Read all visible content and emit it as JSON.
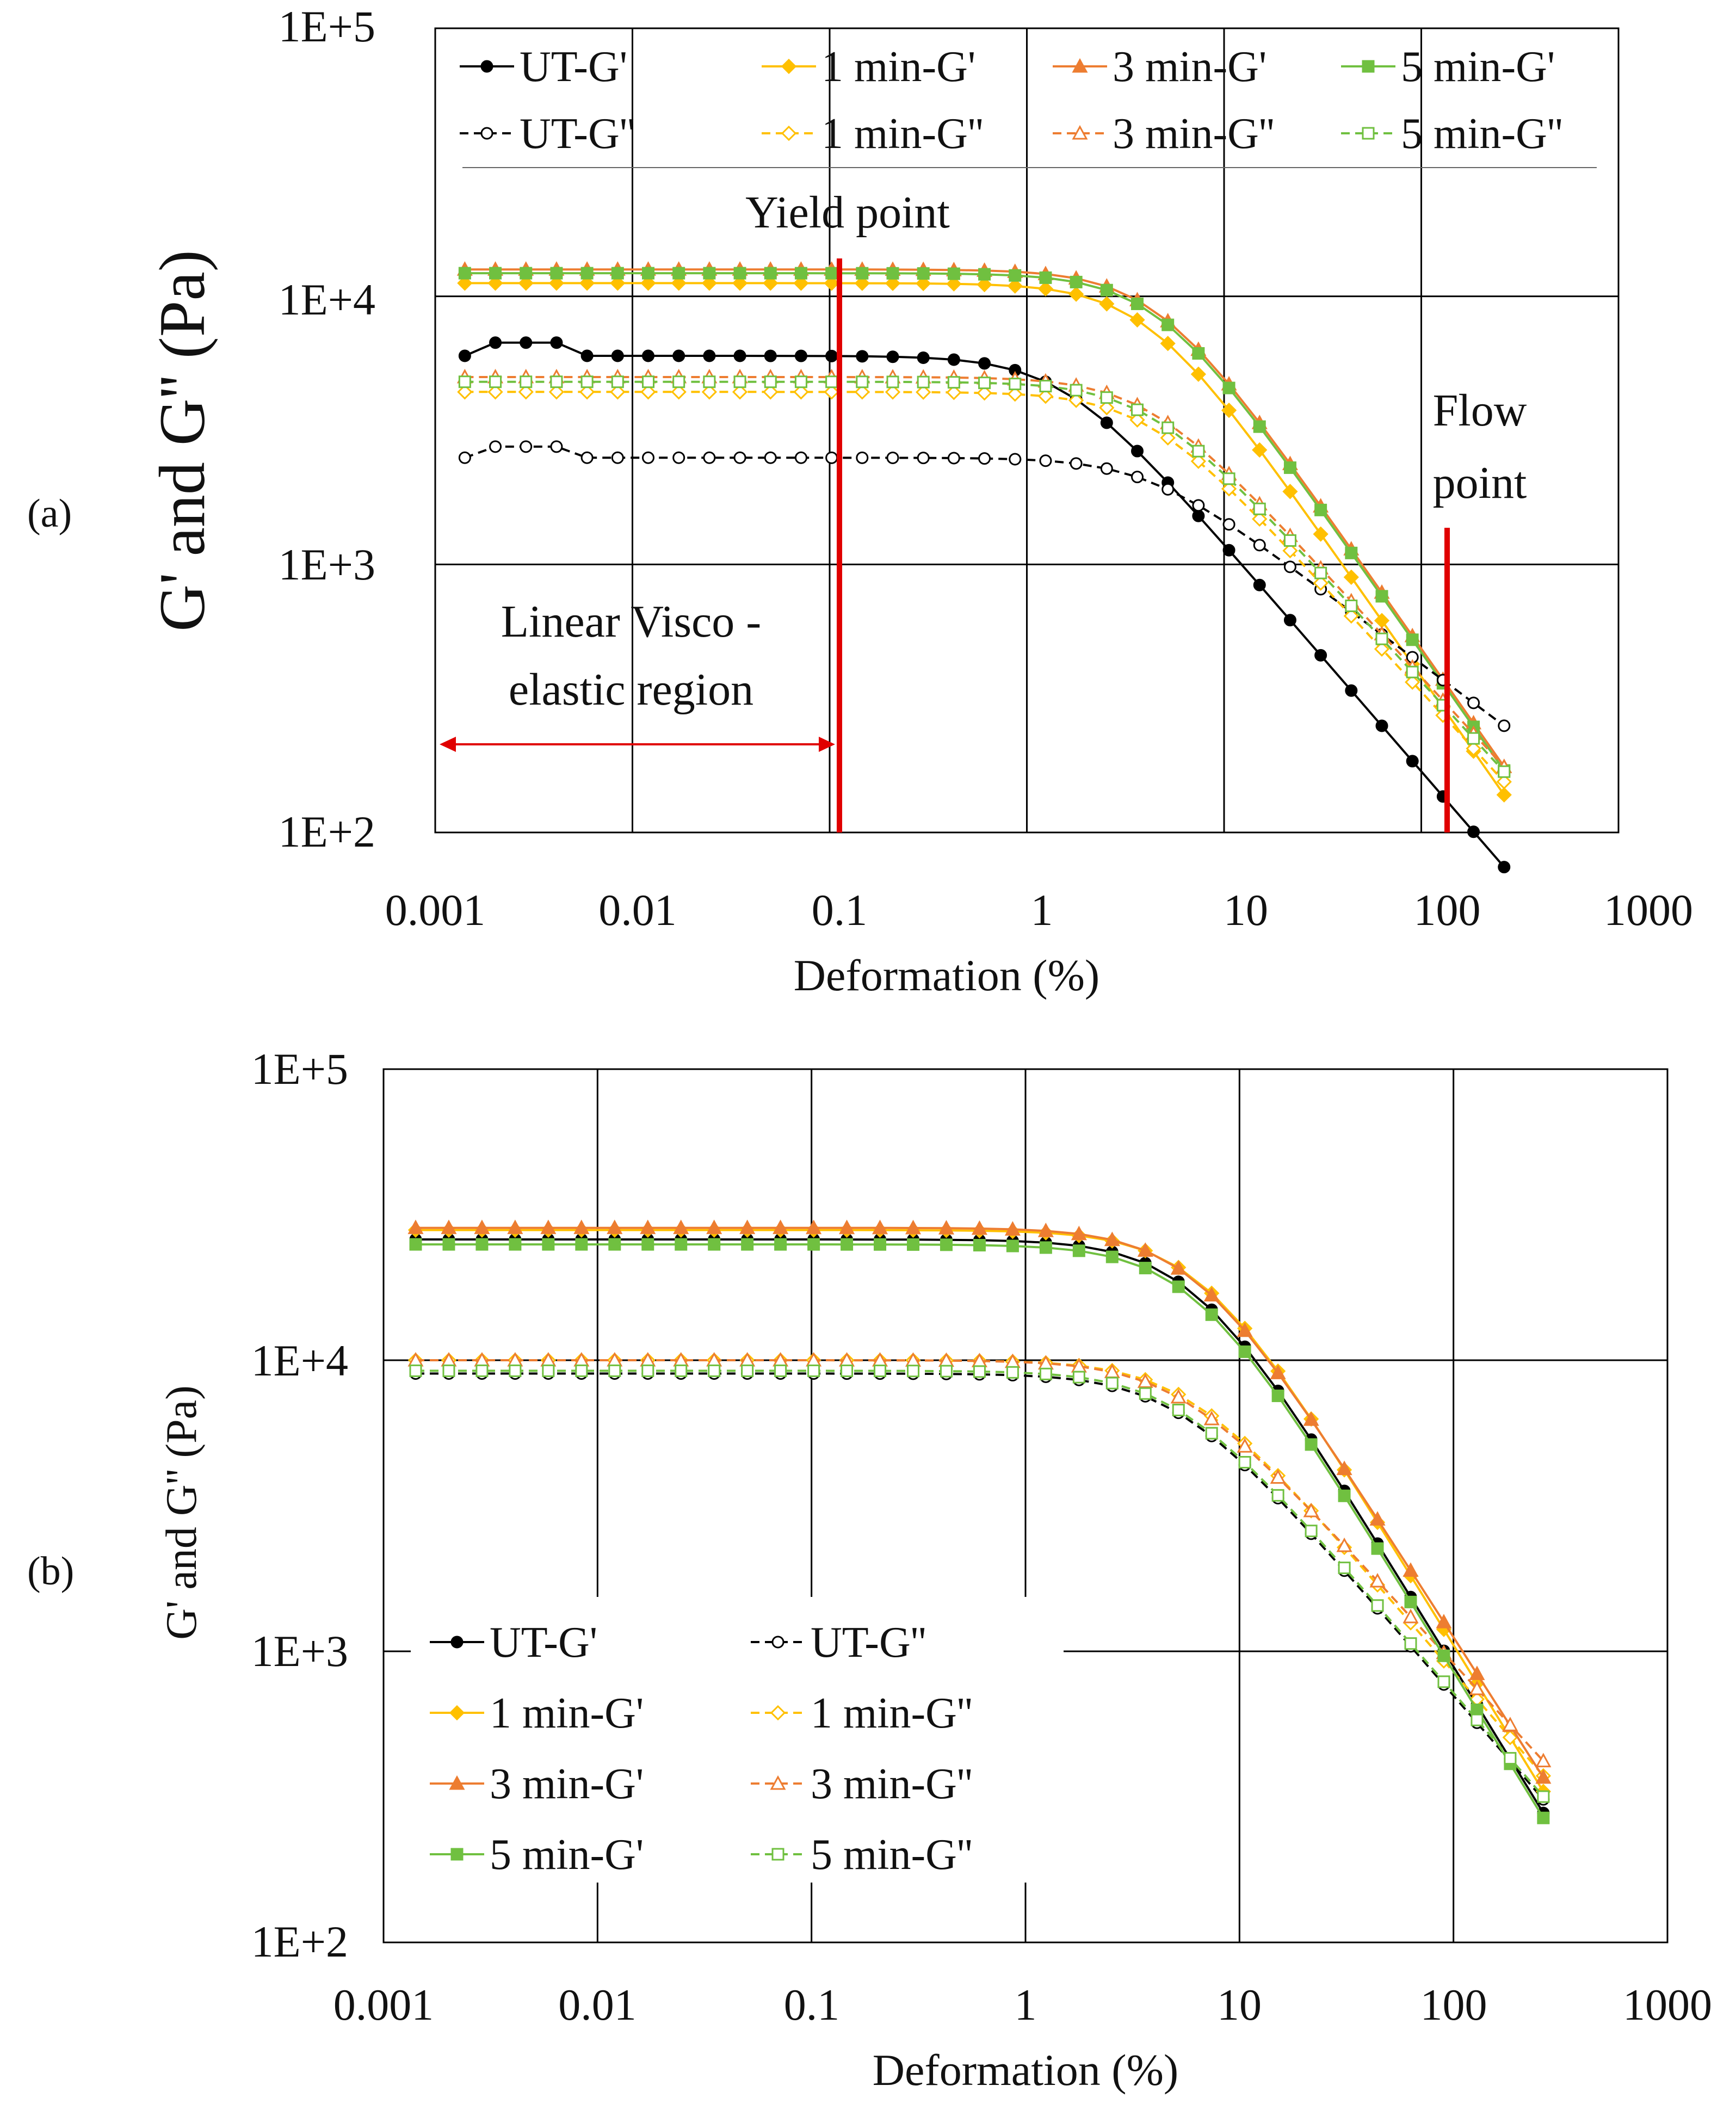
{
  "figure": {
    "panels": [
      {
        "panel_label": "(a)",
        "label_letter": "a",
        "ylabel": "G' and G'' (Pa)",
        "xlabel": "Deformation (%)",
        "annotations": {
          "yield_label": "Yield point",
          "flow_label_line1": "Flow",
          "flow_label_line2": "point",
          "lve_label_line1": "Linear Visco -",
          "lve_label_line2": "elastic region"
        }
      },
      {
        "panel_label": "(b)",
        "label_letter": "b",
        "ylabel": "G' and G'' (Pa)",
        "xlabel": "Deformation (%)"
      }
    ]
  },
  "colors": {
    "UT": "#000000",
    "1min": "#FFC000",
    "3min": "#ED7D31",
    "5min": "#70C040",
    "annotation_red": "#E00000",
    "grid": "#000000"
  },
  "chart_data": [
    {
      "type": "line",
      "title": "(a)",
      "xlabel": "Deformation (%)",
      "ylabel": "G' and G'' (Pa)",
      "xscale": "log",
      "yscale": "log",
      "xlim": [
        0.001,
        1000
      ],
      "ylim": [
        100,
        100000
      ],
      "x_ticks": [
        "0.001",
        "0.01",
        "0.1",
        "1",
        "10",
        "100",
        "1000"
      ],
      "y_ticks": [
        "1E+2",
        "1E+3",
        "1E+4",
        "1E+5"
      ],
      "legend_position": "top",
      "annotations": [
        {
          "text": "Yield point",
          "x": 0.1
        },
        {
          "text": "Flow point",
          "x": 100
        },
        {
          "text": "Linear Visco - elastic region",
          "x_range": [
            0.001,
            0.1
          ]
        }
      ],
      "series": [
        {
          "name": "UT-G'",
          "key": "UT",
          "style": "solid",
          "marker": "circle-filled",
          "amp": 6000,
          "gamma0": 1.5,
          "n": 0.85,
          "bump": 1.12
        },
        {
          "name": "1 min-G'",
          "key": "1min",
          "style": "solid",
          "marker": "diamond-filled",
          "amp": 11200,
          "gamma0": 4.0,
          "n": 1.05
        },
        {
          "name": "3 min-G'",
          "key": "3min",
          "style": "solid",
          "marker": "triangle-filled",
          "amp": 12600,
          "gamma0": 4.5,
          "n": 1.05
        },
        {
          "name": "5 min-G'",
          "key": "5min",
          "style": "solid",
          "marker": "square-filled",
          "amp": 12200,
          "gamma0": 4.5,
          "n": 1.05
        },
        {
          "name": "UT-G''",
          "key": "UT",
          "style": "dashed",
          "marker": "circle-open",
          "amp": 2500,
          "gamma0": 4.0,
          "n": 0.55,
          "bump": 1.1
        },
        {
          "name": "1 min-G''",
          "key": "1min",
          "style": "dashed",
          "marker": "diamond-open",
          "amp": 4400,
          "gamma0": 4.0,
          "n": 0.8
        },
        {
          "name": "3 min-G''",
          "key": "3min",
          "style": "dashed",
          "marker": "triangle-open",
          "amp": 5000,
          "gamma0": 4.0,
          "n": 0.8
        },
        {
          "name": "5 min-G''",
          "key": "5min",
          "style": "dashed",
          "marker": "square-open",
          "amp": 4800,
          "gamma0": 4.0,
          "n": 0.8
        }
      ]
    },
    {
      "type": "line",
      "title": "(b)",
      "xlabel": "Deformation (%)",
      "ylabel": "G' and G'' (Pa)",
      "xscale": "log",
      "yscale": "log",
      "xlim": [
        0.001,
        1000
      ],
      "ylim": [
        100,
        100000
      ],
      "x_ticks": [
        "0.001",
        "0.01",
        "0.1",
        "1",
        "10",
        "100",
        "1000"
      ],
      "y_ticks": [
        "1E+2",
        "1E+3",
        "1E+4",
        "1E+5"
      ],
      "legend_position": "bottom-left",
      "series": [
        {
          "name": "UT-G'",
          "key": "UT",
          "style": "solid",
          "marker": "circle-filled",
          "amp": 26000,
          "gamma0": 6.0,
          "n": 1.2
        },
        {
          "name": "UT-G''",
          "key": "UT",
          "style": "dashed",
          "marker": "circle-open",
          "amp": 9000,
          "gamma0": 5.0,
          "n": 0.85
        },
        {
          "name": "1 min-G'",
          "key": "1min",
          "style": "solid",
          "marker": "diamond-filled",
          "amp": 28000,
          "gamma0": 6.5,
          "n": 1.2
        },
        {
          "name": "1 min-G''",
          "key": "1min",
          "style": "dashed",
          "marker": "diamond-open",
          "amp": 10000,
          "gamma0": 5.5,
          "n": 0.85
        },
        {
          "name": "3 min-G'",
          "key": "3min",
          "style": "solid",
          "marker": "triangle-filled",
          "amp": 28500,
          "gamma0": 6.0,
          "n": 1.15
        },
        {
          "name": "3 min-G''",
          "key": "3min",
          "style": "dashed",
          "marker": "triangle-open",
          "amp": 10000,
          "gamma0": 5.0,
          "n": 0.8
        },
        {
          "name": "5 min-G'",
          "key": "5min",
          "style": "solid",
          "marker": "square-filled",
          "amp": 25000,
          "gamma0": 6.0,
          "n": 1.2
        },
        {
          "name": "5 min-G''",
          "key": "5min",
          "style": "dashed",
          "marker": "square-open",
          "amp": 9200,
          "gamma0": 5.0,
          "n": 0.85
        }
      ]
    }
  ]
}
